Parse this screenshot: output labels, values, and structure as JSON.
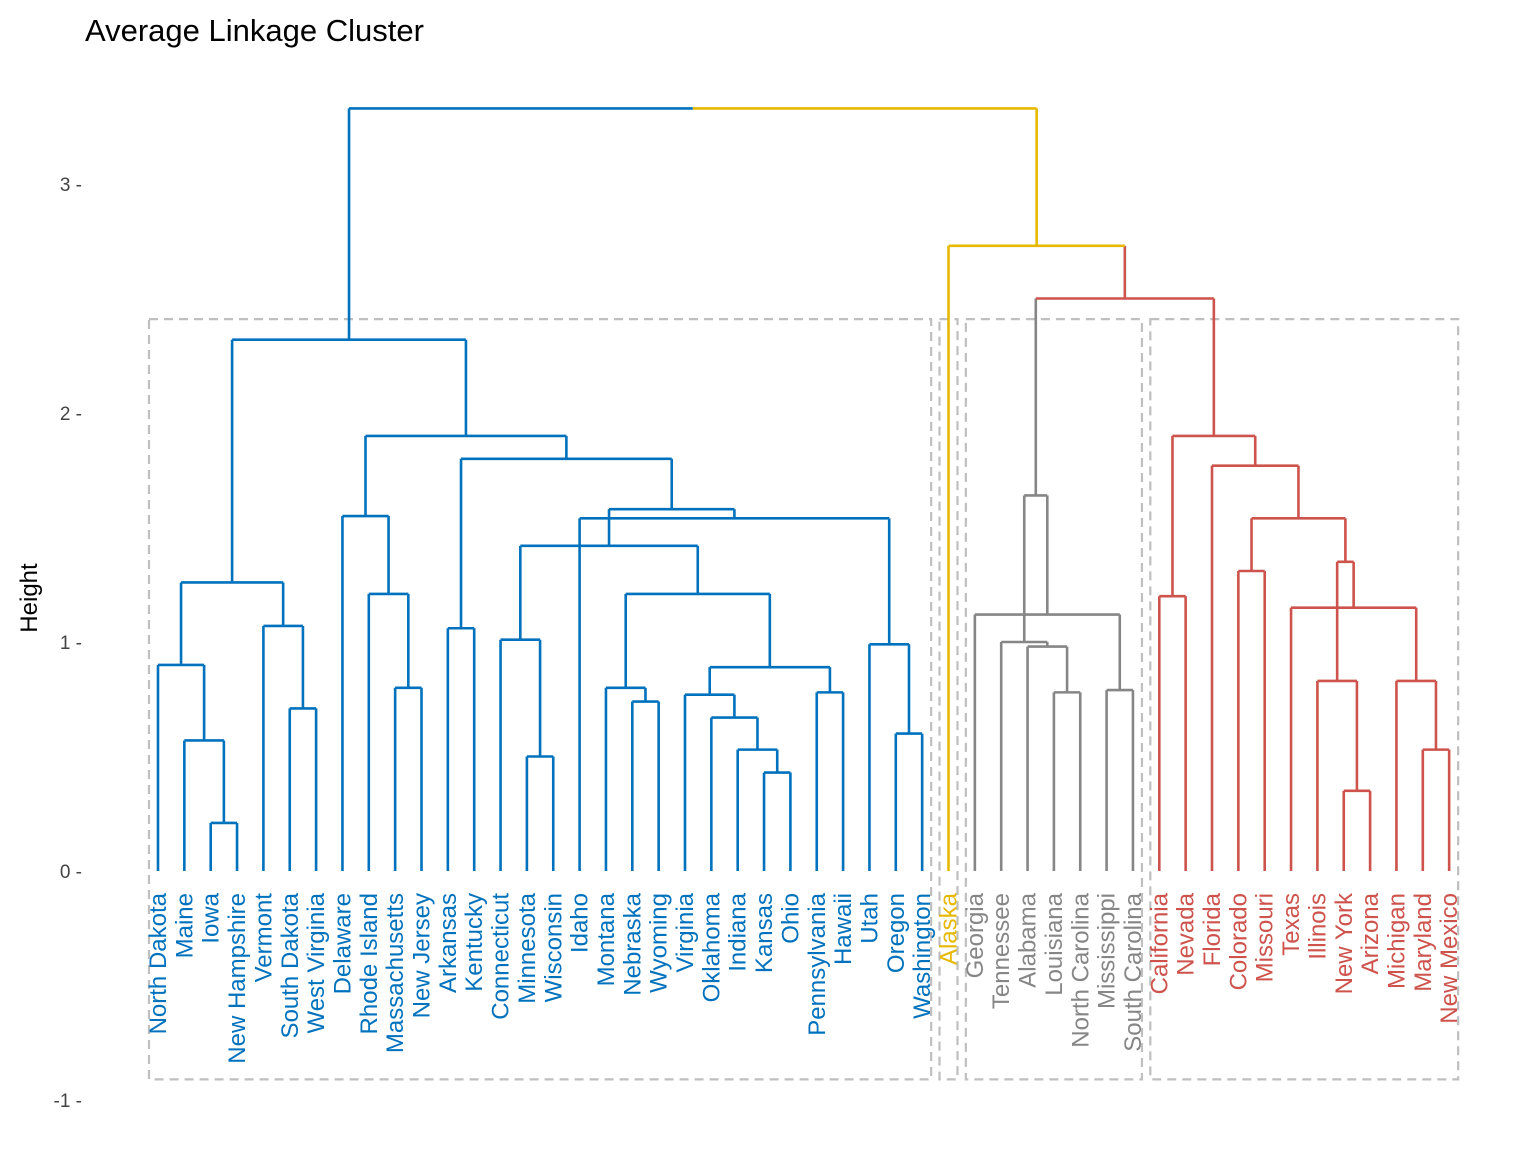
{
  "chart_data": {
    "type": "dendrogram",
    "title": "Average Linkage Cluster",
    "xlabel": "",
    "ylabel": "Height",
    "ylim": [
      -1,
      3.3
    ],
    "yticks": [
      3,
      2,
      1,
      0,
      -1
    ],
    "ytick_labels": [
      "3 -",
      "2 -",
      "1 -",
      "0 -",
      "-1 -"
    ],
    "grid": false,
    "root_color": "#000000",
    "box_color": "#bfbfbf",
    "clusters": [
      {
        "color": "#0072bd",
        "leaves": [
          "North Dakota",
          "Maine",
          "Iowa",
          "New Hampshire",
          "Vermont",
          "South Dakota",
          "West Virginia",
          "Delaware",
          "Rhode Island",
          "Massachusetts",
          "New Jersey",
          "Arkansas",
          "Kentucky",
          "Connecticut",
          "Minnesota",
          "Wisconsin",
          "Idaho",
          "Montana",
          "Nebraska",
          "Wyoming",
          "Virginia",
          "Oklahoma",
          "Indiana",
          "Kansas",
          "Ohio",
          "Pennsylvania",
          "Hawaii",
          "Utah",
          "Oregon",
          "Washington"
        ]
      },
      {
        "color": "#e7b800",
        "leaves": [
          "Alaska"
        ]
      },
      {
        "color": "#868686",
        "leaves": [
          "Georgia",
          "Tennessee",
          "Alabama",
          "Louisiana",
          "North Carolina",
          "Mississippi",
          "South Carolina"
        ]
      },
      {
        "color": "#cd534c",
        "leaves": [
          "California",
          "Nevada",
          "Florida",
          "Colorado",
          "Missouri",
          "Texas",
          "Illinois",
          "New York",
          "Arizona",
          "Michigan",
          "Maryland",
          "New Mexico"
        ]
      }
    ],
    "merges": [
      {
        "a": "Iowa",
        "b": "New Hampshire",
        "h": 0.21,
        "cl": 0
      },
      {
        "a": "Maine",
        "b": 0,
        "h": 0.57,
        "cl": 0
      },
      {
        "a": "North Dakota",
        "b": 1,
        "h": 0.9,
        "cl": 0
      },
      {
        "a": "South Dakota",
        "b": "West Virginia",
        "h": 0.71,
        "cl": 0
      },
      {
        "a": "Vermont",
        "b": 3,
        "h": 1.07,
        "cl": 0
      },
      {
        "a": 2,
        "b": 4,
        "h": 1.26,
        "cl": 0
      },
      {
        "a": "Massachusetts",
        "b": "New Jersey",
        "h": 0.8,
        "cl": 0
      },
      {
        "a": "Rhode Island",
        "b": 6,
        "h": 1.21,
        "cl": 0
      },
      {
        "a": "Delaware",
        "b": 7,
        "h": 1.55,
        "cl": 0
      },
      {
        "a": "Arkansas",
        "b": "Kentucky",
        "h": 1.06,
        "cl": 0
      },
      {
        "a": "Minnesota",
        "b": "Wisconsin",
        "h": 0.5,
        "cl": 0
      },
      {
        "a": "Connecticut",
        "b": 10,
        "h": 1.01,
        "cl": 0
      },
      {
        "a": "Nebraska",
        "b": "Wyoming",
        "h": 0.74,
        "cl": 0
      },
      {
        "a": "Montana",
        "b": 12,
        "h": 0.8,
        "cl": 0
      },
      {
        "a": "Kansas",
        "b": "Ohio",
        "h": 0.43,
        "cl": 0
      },
      {
        "a": "Indiana",
        "b": 14,
        "h": 0.53,
        "cl": 0
      },
      {
        "a": "Oklahoma",
        "b": 15,
        "h": 0.67,
        "cl": 0
      },
      {
        "a": "Virginia",
        "b": 16,
        "h": 0.77,
        "cl": 0
      },
      {
        "a": "Pennsylvania",
        "b": "Hawaii",
        "h": 0.78,
        "cl": 0
      },
      {
        "a": 17,
        "b": 18,
        "h": 0.89,
        "cl": 0
      },
      {
        "a": 13,
        "b": 19,
        "h": 1.21,
        "cl": 0
      },
      {
        "a": 11,
        "b": 20,
        "h": 1.42,
        "cl": 0
      },
      {
        "a": "Oregon",
        "b": "Washington",
        "h": 0.6,
        "cl": 0
      },
      {
        "a": "Utah",
        "b": 22,
        "h": 0.99,
        "cl": 0
      },
      {
        "a": "Idaho",
        "b": 23,
        "h": 1.54,
        "cl": 0
      },
      {
        "a": 21,
        "b": 24,
        "h": 1.58,
        "cl": 0
      },
      {
        "a": 9,
        "b": 25,
        "h": 1.8,
        "cl": 0
      },
      {
        "a": 8,
        "b": 26,
        "h": 1.9,
        "cl": 0
      },
      {
        "a": 5,
        "b": 27,
        "h": 2.32,
        "cl": 0
      },
      {
        "a": "Louisiana",
        "b": "North Carolina",
        "h": 0.78,
        "cl": 2
      },
      {
        "a": "Alabama",
        "b": 29,
        "h": 0.98,
        "cl": 2
      },
      {
        "a": "Tennessee",
        "b": 30,
        "h": 1.0,
        "cl": 2
      },
      {
        "a": "South Carolina",
        "b": "Mississippi",
        "h": 0.79,
        "cl": 2
      },
      {
        "a": 32,
        "b": "Georgia",
        "h": 1.12,
        "cl": 2
      },
      {
        "a": 31,
        "b": 33,
        "h": 1.64,
        "cl": 2
      },
      {
        "a": "California",
        "b": "Nevada",
        "h": 1.2,
        "cl": 3
      },
      {
        "a": "Colorado",
        "b": "Missouri",
        "h": 1.31,
        "cl": 3
      },
      {
        "a": "New York",
        "b": "Arizona",
        "h": 0.35,
        "cl": 3
      },
      {
        "a": "Illinois",
        "b": 37,
        "h": 0.83,
        "cl": 3
      },
      {
        "a": "New Mexico",
        "b": "Maryland",
        "h": 0.53,
        "cl": 3
      },
      {
        "a": 39,
        "b": "Michigan",
        "h": 0.83,
        "cl": 3
      },
      {
        "a": 40,
        "b": "Texas",
        "h": 1.15,
        "cl": 3
      },
      {
        "a": 38,
        "b": 41,
        "h": 1.35,
        "cl": 3
      },
      {
        "a": 36,
        "b": 42,
        "h": 1.54,
        "cl": 3
      },
      {
        "a": "Florida",
        "b": 43,
        "h": 1.77,
        "cl": 3
      },
      {
        "a": 35,
        "b": 44,
        "h": 1.9,
        "cl": 3
      },
      {
        "a": 34,
        "b": 45,
        "h": 2.5,
        "cl": 3
      },
      {
        "a": "Alaska",
        "b": 46,
        "h": 2.73,
        "cl": 1
      },
      {
        "a": 28,
        "b": 47,
        "h": 3.33,
        "cl": -1
      }
    ]
  }
}
